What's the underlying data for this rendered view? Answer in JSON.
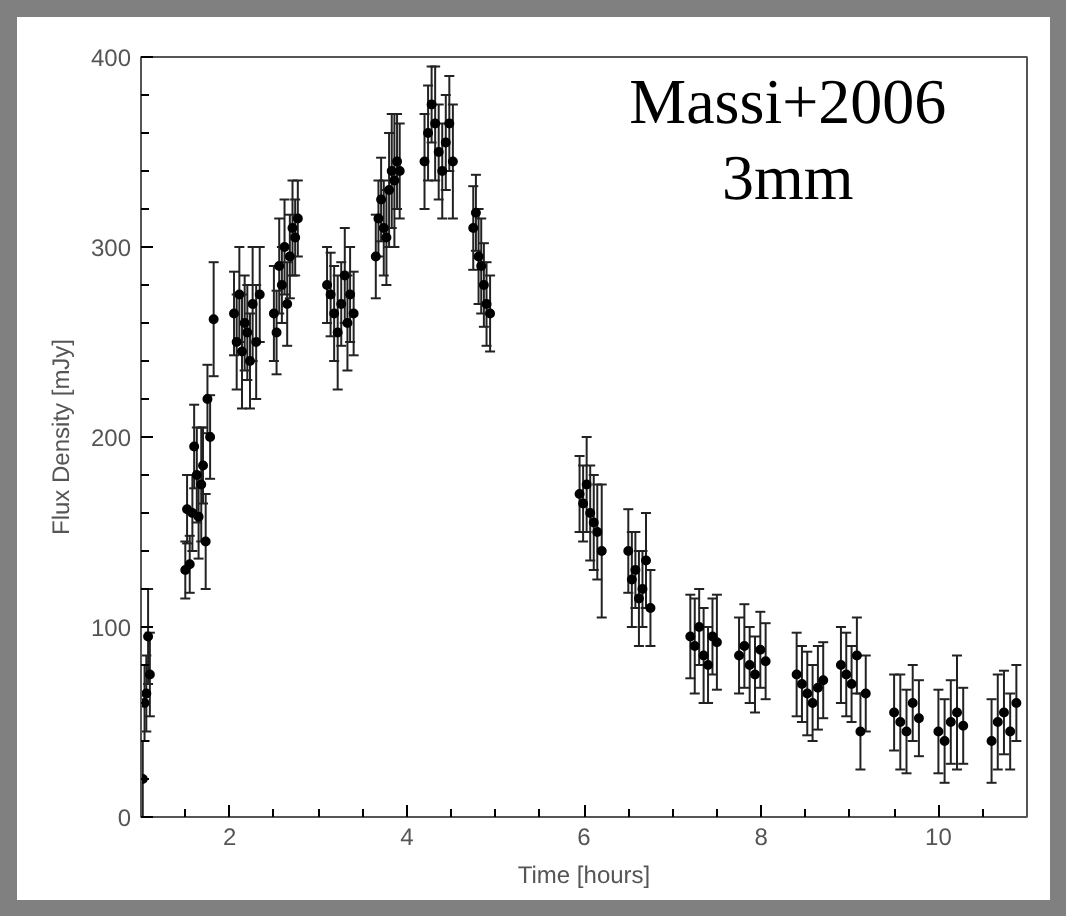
{
  "chart_data": {
    "type": "scatter",
    "xlabel": "Time [hours]",
    "ylabel": "Flux Density [mJy]",
    "annotations": [
      "Massi+2006",
      "3mm"
    ],
    "xlim": [
      1,
      11
    ],
    "ylim": [
      0,
      400
    ],
    "xticks": [
      {
        "value": 1.5,
        "label": null
      },
      2,
      {
        "value": 2.5,
        "label": null
      },
      {
        "value": 3,
        "label": null
      },
      {
        "value": 3.5,
        "label": null
      },
      4,
      {
        "value": 4.5,
        "label": null
      },
      {
        "value": 5,
        "label": null
      },
      {
        "value": 5.5,
        "label": null
      },
      6,
      {
        "value": 6.5,
        "label": null
      },
      {
        "value": 7,
        "label": null
      },
      {
        "value": 7.5,
        "label": null
      },
      8,
      {
        "value": 8.5,
        "label": null
      },
      {
        "value": 9,
        "label": null
      },
      {
        "value": 9.5,
        "label": null
      },
      10,
      {
        "value": 10.5,
        "label": null
      }
    ],
    "yticks": [
      0,
      {
        "value": 20,
        "label": null
      },
      {
        "value": 40,
        "label": null
      },
      {
        "value": 60,
        "label": null
      },
      {
        "value": 80,
        "label": null
      },
      100,
      {
        "value": 120,
        "label": null
      },
      {
        "value": 140,
        "label": null
      },
      {
        "value": 160,
        "label": null
      },
      {
        "value": 180,
        "label": null
      },
      200,
      {
        "value": 220,
        "label": null
      },
      {
        "value": 240,
        "label": null
      },
      {
        "value": 260,
        "label": null
      },
      {
        "value": 280,
        "label": null
      },
      300,
      {
        "value": 320,
        "label": null
      },
      {
        "value": 340,
        "label": null
      },
      {
        "value": 360,
        "label": null
      },
      {
        "value": 380,
        "label": null
      },
      400
    ],
    "marker": "circle",
    "grid": false,
    "x": [
      1.02,
      1.04,
      1.06,
      1.08,
      1.1,
      1.5,
      1.52,
      1.55,
      1.58,
      1.6,
      1.63,
      1.65,
      1.68,
      1.7,
      1.73,
      1.75,
      1.78,
      1.82,
      2.05,
      2.08,
      2.11,
      2.14,
      2.17,
      2.2,
      2.23,
      2.26,
      2.3,
      2.34,
      2.5,
      2.53,
      2.56,
      2.59,
      2.62,
      2.65,
      2.68,
      2.71,
      2.74,
      2.77,
      3.1,
      3.14,
      3.18,
      3.22,
      3.26,
      3.3,
      3.33,
      3.36,
      3.4,
      3.65,
      3.68,
      3.71,
      3.74,
      3.77,
      3.8,
      3.83,
      3.86,
      3.89,
      3.92,
      4.2,
      4.24,
      4.28,
      4.32,
      4.36,
      4.4,
      4.44,
      4.48,
      4.52,
      4.75,
      4.78,
      4.81,
      4.84,
      4.87,
      4.9,
      4.94,
      5.95,
      5.99,
      6.03,
      6.07,
      6.11,
      6.15,
      6.2,
      6.5,
      6.54,
      6.58,
      6.62,
      6.66,
      6.7,
      6.75,
      7.2,
      7.25,
      7.3,
      7.35,
      7.4,
      7.45,
      7.5,
      7.75,
      7.81,
      7.87,
      7.93,
      7.99,
      8.05,
      8.4,
      8.46,
      8.52,
      8.58,
      8.64,
      8.7,
      8.9,
      8.96,
      9.02,
      9.08,
      9.12,
      9.18,
      9.5,
      9.57,
      9.64,
      9.71,
      9.78,
      10.0,
      10.07,
      10.14,
      10.21,
      10.28,
      10.6,
      10.67,
      10.74,
      10.81,
      10.88
    ],
    "values": [
      20,
      60,
      65,
      95,
      75,
      130,
      162,
      133,
      160,
      195,
      180,
      158,
      175,
      185,
      145,
      220,
      200,
      262,
      265,
      250,
      275,
      245,
      260,
      255,
      240,
      270,
      250,
      275,
      265,
      255,
      290,
      280,
      300,
      270,
      295,
      310,
      305,
      315,
      280,
      275,
      265,
      255,
      270,
      285,
      260,
      275,
      265,
      295,
      315,
      325,
      310,
      305,
      330,
      340,
      335,
      345,
      340,
      345,
      360,
      375,
      365,
      350,
      340,
      355,
      365,
      345,
      310,
      318,
      295,
      290,
      280,
      270,
      265,
      170,
      165,
      175,
      160,
      155,
      150,
      140,
      140,
      125,
      130,
      115,
      120,
      135,
      110,
      95,
      90,
      100,
      85,
      80,
      95,
      92,
      85,
      90,
      80,
      75,
      88,
      82,
      75,
      70,
      65,
      60,
      68,
      72,
      80,
      75,
      70,
      85,
      45,
      65,
      55,
      50,
      45,
      60,
      52,
      45,
      40,
      50,
      55,
      48,
      40,
      50,
      55,
      45,
      60
    ],
    "errors": [
      20,
      20,
      20,
      25,
      22,
      15,
      18,
      15,
      20,
      22,
      25,
      22,
      30,
      20,
      25,
      18,
      22,
      30,
      22,
      25,
      25,
      30,
      25,
      25,
      25,
      30,
      30,
      25,
      25,
      22,
      25,
      20,
      25,
      22,
      22,
      25,
      20,
      20,
      20,
      22,
      25,
      30,
      22,
      25,
      25,
      25,
      22,
      22,
      20,
      22,
      25,
      25,
      30,
      30,
      35,
      25,
      25,
      25,
      25,
      20,
      30,
      25,
      25,
      25,
      25,
      30,
      22,
      20,
      25,
      25,
      22,
      22,
      20,
      20,
      20,
      25,
      25,
      25,
      25,
      35,
      22,
      25,
      20,
      25,
      20,
      25,
      20,
      22,
      25,
      20,
      25,
      20,
      20,
      25,
      20,
      22,
      20,
      20,
      20,
      20,
      22,
      20,
      22,
      20,
      22,
      20,
      20,
      22,
      20,
      20,
      20,
      20,
      20,
      25,
      22,
      20,
      20,
      22,
      22,
      22,
      30,
      20,
      22,
      25,
      22,
      20,
      20
    ]
  }
}
